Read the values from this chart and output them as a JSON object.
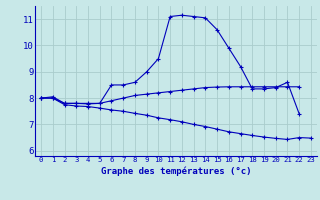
{
  "curve1_x": [
    0,
    1,
    2,
    3,
    4,
    5,
    6,
    7,
    8,
    9,
    10,
    11,
    12,
    13,
    14,
    15,
    16,
    17,
    18,
    19,
    20,
    21,
    22
  ],
  "curve1_y": [
    8.0,
    8.0,
    7.8,
    7.8,
    7.8,
    7.8,
    8.5,
    8.5,
    8.6,
    9.0,
    9.5,
    11.1,
    11.15,
    11.1,
    11.05,
    10.6,
    9.9,
    9.2,
    8.35,
    8.35,
    8.4,
    8.6,
    7.4
  ],
  "curve2_x": [
    0,
    1,
    2,
    3,
    4,
    5,
    6,
    7,
    8,
    9,
    10,
    11,
    12,
    13,
    14,
    15,
    16,
    17,
    18,
    19,
    20,
    21,
    22
  ],
  "curve2_y": [
    8.0,
    8.05,
    7.8,
    7.8,
    7.78,
    7.8,
    7.9,
    8.0,
    8.1,
    8.15,
    8.2,
    8.25,
    8.3,
    8.35,
    8.4,
    8.42,
    8.43,
    8.43,
    8.43,
    8.43,
    8.43,
    8.43,
    8.43
  ],
  "curve3_x": [
    0,
    1,
    2,
    3,
    4,
    5,
    6,
    7,
    8,
    9,
    10,
    11,
    12,
    13,
    14,
    15,
    16,
    17,
    18,
    19,
    20,
    21,
    22,
    23
  ],
  "curve3_y": [
    8.0,
    8.0,
    7.75,
    7.7,
    7.68,
    7.62,
    7.55,
    7.5,
    7.42,
    7.35,
    7.25,
    7.18,
    7.1,
    7.0,
    6.92,
    6.82,
    6.72,
    6.65,
    6.58,
    6.52,
    6.47,
    6.43,
    6.5,
    6.48
  ],
  "line_color": "#0000bb",
  "background_color": "#c8e8e8",
  "grid_color": "#aacccc",
  "xlabel": "Graphe des températures (°c)",
  "ylim": [
    5.8,
    11.5
  ],
  "yticks": [
    6,
    7,
    8,
    9,
    10,
    11
  ],
  "xticks": [
    0,
    1,
    2,
    3,
    4,
    5,
    6,
    7,
    8,
    9,
    10,
    11,
    12,
    13,
    14,
    15,
    16,
    17,
    18,
    19,
    20,
    21,
    22,
    23
  ]
}
